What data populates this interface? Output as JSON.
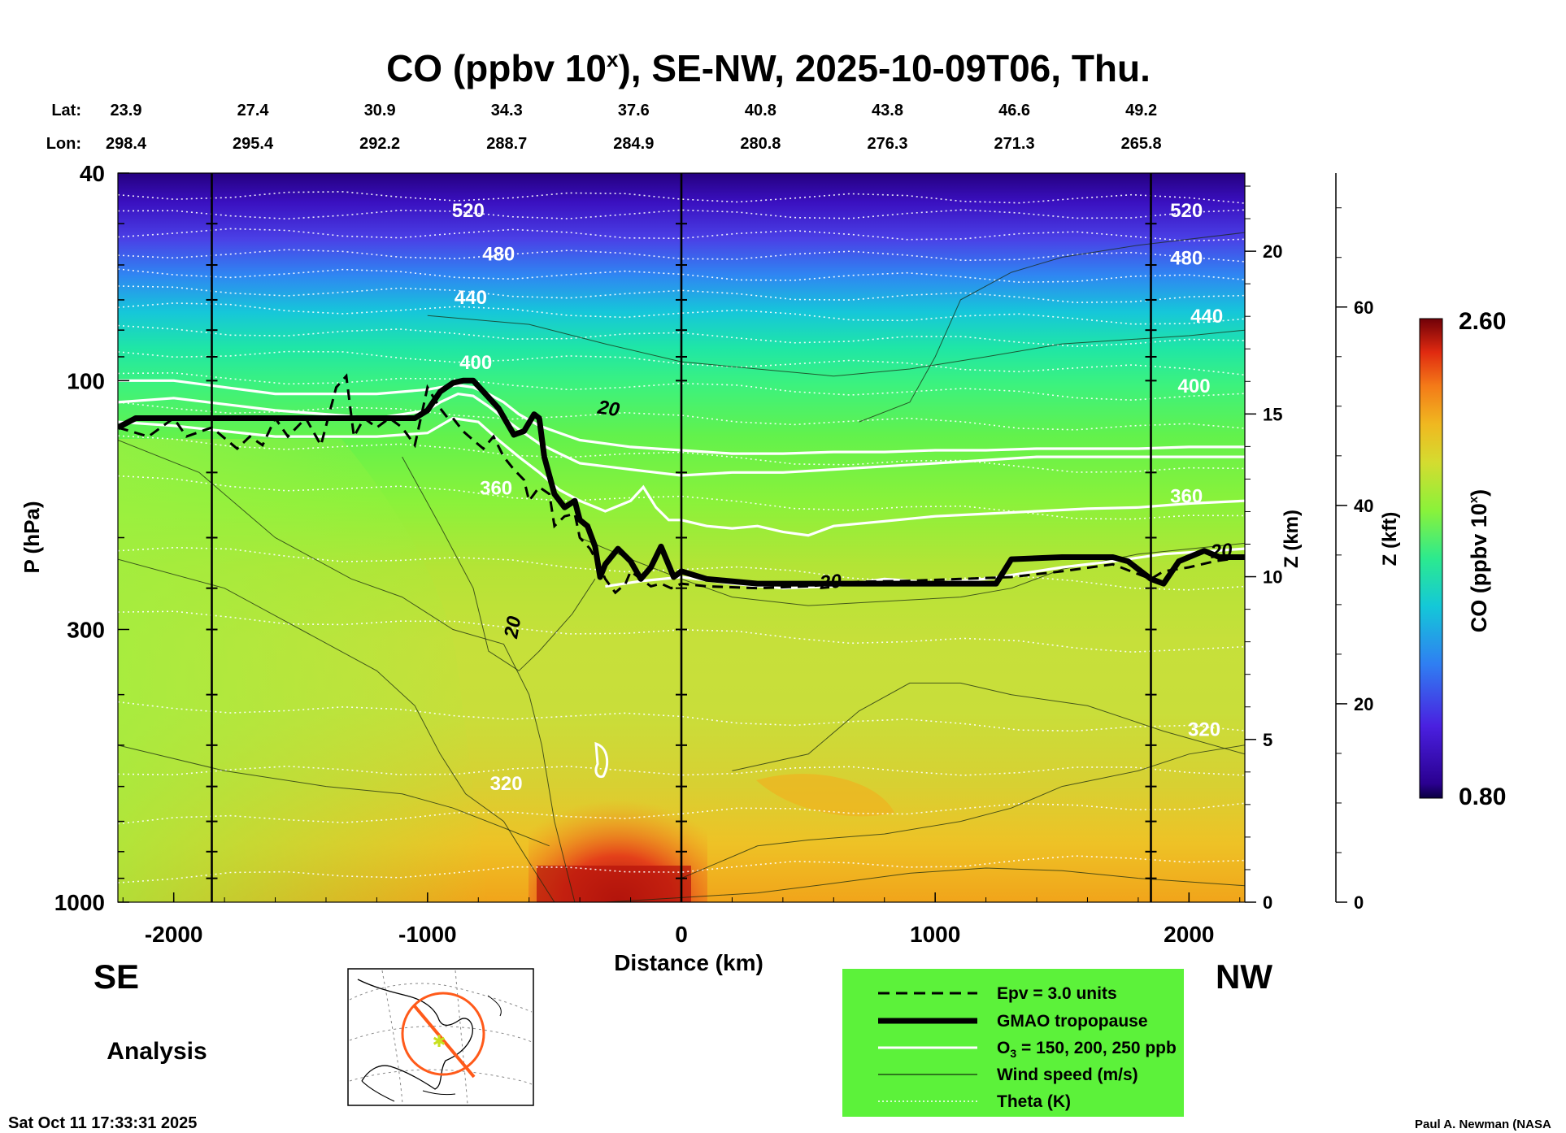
{
  "chart_data": {
    "type": "heatmap",
    "title": "CO (ppbv 10",
    "title_sup": "x",
    "title_rest": "), SE-NW, 2025-10-09T06, Thu.",
    "xlabel": "Distance (km)",
    "ylabel": "P (hPa)",
    "ylabel_right1": "Z (km)",
    "ylabel_right2": "Z (kft)",
    "colorbar_label": "CO (ppbv 10",
    "colorbar_label_sup": "x",
    "colorbar_label_end": ")",
    "colorbar_range": [
      0.8,
      2.6
    ],
    "colorbar_max_label": "2.60",
    "colorbar_min_label": "0.80",
    "xlim": [
      -2220,
      2220
    ],
    "ylim_hpa": [
      1000,
      40
    ],
    "log_y": true,
    "x_ticks": [
      -2000,
      -1000,
      0,
      1000,
      2000
    ],
    "x_tick_labels": [
      "-2000",
      "-1000",
      "0",
      "1000",
      "2000"
    ],
    "y_ticks": [
      40,
      100,
      300,
      1000
    ],
    "y_tick_labels": [
      "40",
      "100",
      "300",
      "1000"
    ],
    "z_km_ticks": [
      0,
      5,
      10,
      15,
      20
    ],
    "z_km_labels": [
      "0",
      "5",
      "10",
      "15",
      "20"
    ],
    "z_kft_ticks": [
      0,
      20,
      40,
      60
    ],
    "z_kft_labels": [
      "0",
      "20",
      "40",
      "60"
    ],
    "lat_label": "Lat:",
    "lon_label": "Lon:",
    "lat_lon_x": [
      -2220,
      -1720,
      -1220,
      -720,
      -220,
      280,
      780,
      1280,
      1780
    ],
    "lats": [
      "23.9",
      "27.4",
      "30.9",
      "34.3",
      "37.6",
      "40.8",
      "43.8",
      "46.6",
      "49.2"
    ],
    "lons": [
      "298.4",
      "295.4",
      "292.2",
      "288.7",
      "284.9",
      "280.8",
      "276.3",
      "271.3",
      "265.8"
    ],
    "vertical_lines_km": [
      -1850,
      0,
      1850
    ],
    "left_dir": "SE",
    "right_dir": "NW",
    "analysis_label": "Analysis",
    "timestamp": "Sat Oct 11 17:33:31 2025",
    "credit": "Paul A. Newman (NASA",
    "theta_labels": [
      {
        "text": "520",
        "x": -840,
        "p": 47
      },
      {
        "text": "480",
        "x": -720,
        "p": 57
      },
      {
        "text": "440",
        "x": -830,
        "p": 69
      },
      {
        "text": "400",
        "x": -810,
        "p": 92
      },
      {
        "text": "360",
        "x": -730,
        "p": 160
      },
      {
        "text": "320",
        "x": -690,
        "p": 590
      },
      {
        "text": "520",
        "x": 1990,
        "p": 47
      },
      {
        "text": "480",
        "x": 1990,
        "p": 58
      },
      {
        "text": "440",
        "x": 2070,
        "p": 75
      },
      {
        "text": "400",
        "x": 2020,
        "p": 102
      },
      {
        "text": "360",
        "x": 1990,
        "p": 166
      },
      {
        "text": "320",
        "x": 2060,
        "p": 465
      }
    ],
    "wind_labels": [
      {
        "text": "20",
        "x": -290,
        "p": 113
      },
      {
        "text": "20",
        "x": -640,
        "p": 290
      },
      {
        "text": "20",
        "x": 590,
        "p": 243
      },
      {
        "text": "20",
        "x": 2130,
        "p": 212
      }
    ],
    "tropopause_gmao": {
      "x": [
        -2220,
        -2150,
        -1500,
        -1050,
        -1000,
        -950,
        -900,
        -860,
        -820,
        -780,
        -720,
        -660,
        -620,
        -580,
        -560,
        -540,
        -500,
        -460,
        -420,
        -400,
        -370,
        -340,
        -320,
        -300,
        -250,
        -200,
        -160,
        -120,
        -80,
        -30,
        0,
        100,
        300,
        500,
        800,
        1000,
        1240,
        1300,
        1500,
        1700,
        1760,
        1800,
        1850,
        1900,
        1960,
        2060,
        2120,
        2220
      ],
      "p": [
        123,
        118,
        118,
        118,
        114,
        105,
        101,
        100,
        100,
        105,
        113,
        127,
        125,
        116,
        118,
        140,
        165,
        175,
        170,
        185,
        190,
        208,
        238,
        225,
        210,
        222,
        240,
        228,
        208,
        238,
        232,
        240,
        245,
        245,
        245,
        245,
        245,
        220,
        218,
        218,
        222,
        230,
        240,
        245,
        222,
        212,
        218,
        218
      ]
    },
    "tropopause_epv": {
      "x": [
        -2220,
        -2100,
        -2000,
        -1950,
        -1850,
        -1750,
        -1700,
        -1650,
        -1600,
        -1550,
        -1480,
        -1420,
        -1360,
        -1320,
        -1290,
        -1250,
        -1200,
        -1150,
        -1100,
        -1050,
        -1000,
        -950,
        -920,
        -900,
        -860,
        -820,
        -780,
        -740,
        -700,
        -660,
        -620,
        -600,
        -560,
        -520,
        -500,
        -460,
        -420,
        -400,
        -360,
        -320,
        -300,
        -260,
        -220,
        -200,
        -160,
        -120,
        -80,
        -40,
        0,
        100,
        300,
        500,
        700,
        900,
        1100,
        1300,
        1500,
        1700,
        1800,
        1850,
        1900,
        2000,
        2100,
        2220
      ],
      "p": [
        123,
        128,
        118,
        128,
        123,
        135,
        128,
        133,
        118,
        128,
        118,
        133,
        103,
        98,
        128,
        118,
        123,
        118,
        123,
        133,
        103,
        113,
        118,
        118,
        125,
        130,
        135,
        128,
        140,
        148,
        155,
        170,
        160,
        165,
        190,
        182,
        180,
        200,
        210,
        228,
        240,
        255,
        245,
        232,
        240,
        248,
        245,
        250,
        245,
        248,
        250,
        248,
        243,
        242,
        240,
        238,
        232,
        225,
        235,
        240,
        232,
        228,
        222,
        218
      ]
    },
    "o3_contours": [
      {
        "x": [
          -2220,
          -2000,
          -1600,
          -1200,
          -1000,
          -950,
          -880,
          -820,
          -760,
          -700,
          -640,
          -560,
          -480,
          -400,
          -300,
          -200,
          -100,
          0,
          200,
          400,
          600,
          800,
          1000,
          1200,
          1400,
          1600,
          1800,
          2000,
          2220
        ],
        "p": [
          100,
          100,
          106,
          106,
          104,
          103,
          102,
          103,
          106,
          110,
          116,
          122,
          126,
          130,
          132,
          134,
          135,
          136,
          138,
          138,
          137,
          137,
          136,
          136,
          135,
          135,
          135,
          134,
          134
        ]
      },
      {
        "x": [
          -2220,
          -2000,
          -1600,
          -1200,
          -1000,
          -950,
          -880,
          -820,
          -760,
          -700,
          -640,
          -560,
          -480,
          -400,
          -300,
          -200,
          -100,
          0,
          200,
          400,
          600,
          800,
          1000,
          1200,
          1400,
          1600,
          1800,
          2000,
          2220
        ],
        "p": [
          110,
          108,
          114,
          118,
          114,
          110,
          106,
          107,
          112,
          118,
          124,
          132,
          138,
          144,
          146,
          148,
          150,
          152,
          150,
          150,
          148,
          146,
          144,
          142,
          140,
          140,
          140,
          140,
          140
        ]
      },
      {
        "x": [
          -2220,
          -2000,
          -1600,
          -1200,
          -1000,
          -900,
          -800,
          -720,
          -640,
          -560,
          -480,
          -400,
          -300,
          -200,
          -150,
          -100,
          -50,
          0,
          100,
          200,
          300,
          400,
          500,
          600,
          800,
          1000,
          1200,
          1400,
          1600,
          1800,
          2000,
          2220
        ],
        "p": [
          120,
          122,
          128,
          128,
          126,
          118,
          120,
          130,
          140,
          150,
          162,
          170,
          178,
          170,
          160,
          175,
          185,
          185,
          190,
          192,
          190,
          195,
          198,
          190,
          186,
          182,
          180,
          178,
          176,
          175,
          172,
          170
        ]
      },
      {
        "x": [
          -300,
          -150,
          0,
          200,
          400,
          600,
          800,
          1000,
          1200,
          1300,
          1500,
          1700,
          1900,
          2100,
          2220
        ],
        "p": [
          248,
          242,
          238,
          245,
          250,
          248,
          240,
          244,
          240,
          236,
          228,
          222,
          215,
          212,
          210
        ]
      }
    ]
  }
}
